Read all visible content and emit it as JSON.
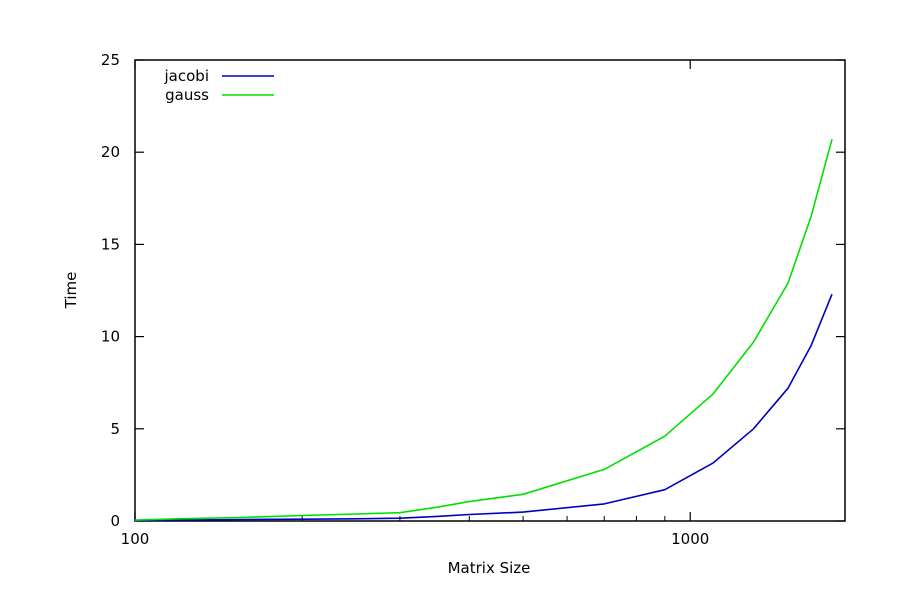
{
  "chart_data": {
    "type": "line",
    "title": "",
    "xlabel": "Matrix Size",
    "ylabel": "Time",
    "x_scale": "log",
    "xlim": [
      100,
      1900
    ],
    "ylim": [
      0,
      25
    ],
    "x_ticks": [
      {
        "value": 100,
        "label": "100"
      },
      {
        "value": 1000,
        "label": "1000"
      }
    ],
    "y_ticks": [
      {
        "value": 0,
        "label": "0"
      },
      {
        "value": 5,
        "label": "5"
      },
      {
        "value": 10,
        "label": "10"
      },
      {
        "value": 15,
        "label": "15"
      },
      {
        "value": 20,
        "label": "20"
      },
      {
        "value": 25,
        "label": "25"
      }
    ],
    "grid": false,
    "legend_position": "top-left",
    "series": [
      {
        "name": "jacobi",
        "color": "#0000c0",
        "x": [
          100,
          120,
          160,
          200,
          250,
          300,
          350,
          400,
          500,
          700,
          900,
          1100,
          1300,
          1500,
          1650,
          1800
        ],
        "y": [
          0.02,
          0.05,
          0.08,
          0.1,
          0.12,
          0.15,
          0.25,
          0.35,
          0.48,
          0.93,
          1.7,
          3.15,
          5.0,
          7.2,
          9.5,
          12.3
        ]
      },
      {
        "name": "gauss",
        "color": "#00e000",
        "x": [
          100,
          120,
          160,
          200,
          250,
          300,
          350,
          400,
          500,
          700,
          900,
          1100,
          1300,
          1500,
          1650,
          1800
        ],
        "y": [
          0.05,
          0.12,
          0.2,
          0.3,
          0.38,
          0.45,
          0.75,
          1.05,
          1.45,
          2.8,
          4.6,
          6.9,
          9.7,
          12.9,
          16.5,
          20.7
        ]
      }
    ]
  }
}
